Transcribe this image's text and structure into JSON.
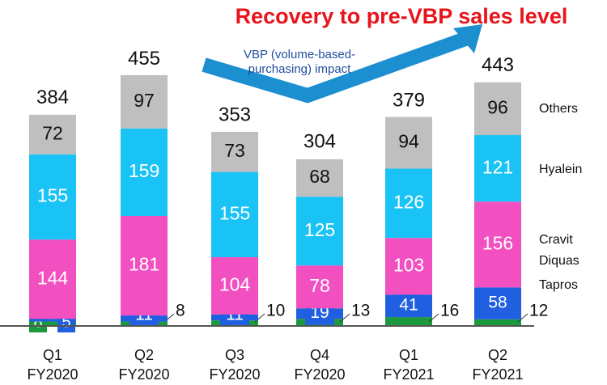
{
  "chart_data": {
    "type": "stacked_bar",
    "title": "Recovery to pre-VBP sales level",
    "annotation": [
      "VBP (volume-based-",
      "purchasing) impact"
    ],
    "categories": [
      [
        "Q1",
        "FY2020"
      ],
      [
        "Q2",
        "FY2020"
      ],
      [
        "Q3",
        "FY2020"
      ],
      [
        "Q4",
        "FY2020"
      ],
      [
        "Q1",
        "FY2021"
      ],
      [
        "Q2",
        "FY2021"
      ]
    ],
    "series": [
      {
        "name": "Tapros",
        "color": "#1a9a3c",
        "values": [
          8,
          8,
          10,
          13,
          16,
          12
        ]
      },
      {
        "name": "Diquas",
        "color": "#1f5fe0",
        "values": [
          5,
          11,
          11,
          19,
          41,
          58
        ]
      },
      {
        "name": "Cravit",
        "color": "#f24fc0",
        "values": [
          144,
          181,
          104,
          78,
          103,
          156
        ]
      },
      {
        "name": "Hyalein",
        "color": "#19c3f5",
        "values": [
          155,
          159,
          155,
          125,
          126,
          121
        ]
      },
      {
        "name": "Others",
        "color": "#bfbfbf",
        "values": [
          72,
          97,
          73,
          68,
          94,
          96
        ]
      }
    ],
    "totals": [
      384,
      455,
      353,
      304,
      379,
      443
    ],
    "ylim": [
      0,
      600
    ]
  }
}
